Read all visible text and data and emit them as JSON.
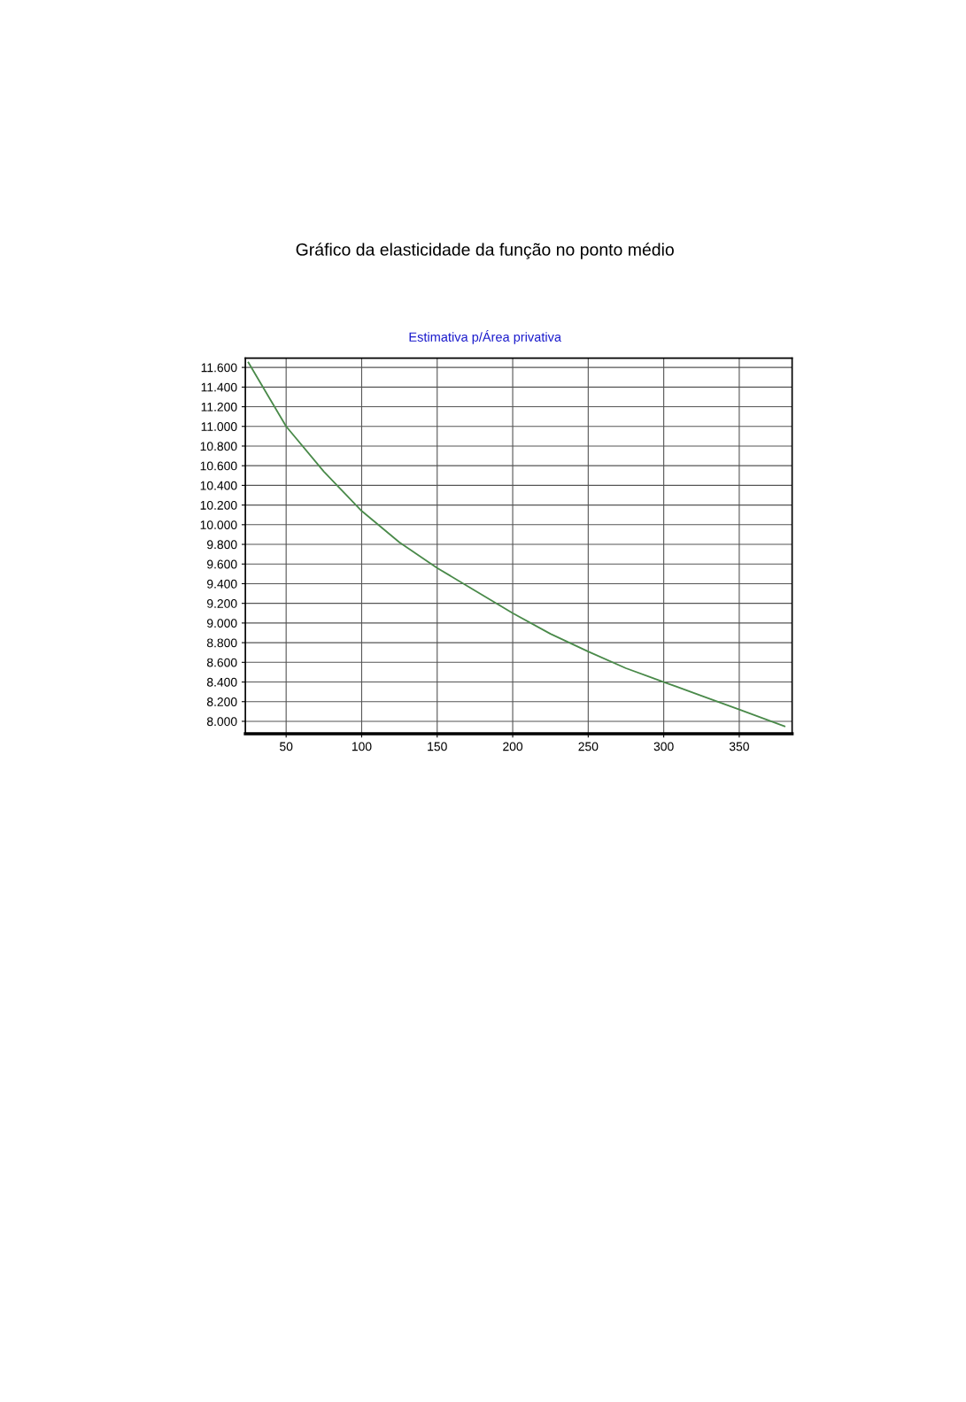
{
  "chart_data": {
    "type": "line",
    "title": "Gráfico da elasticidade da função no ponto médio",
    "subtitle": "Estimativa p/Área privativa",
    "x": [
      25,
      50,
      75,
      100,
      125,
      150,
      175,
      200,
      225,
      250,
      275,
      300,
      325,
      350,
      380
    ],
    "series": [
      {
        "color": "#4a8a4a",
        "values": [
          11650,
          11000,
          10540,
          10140,
          9820,
          9560,
          9330,
          9100,
          8890,
          8710,
          8540,
          8400,
          8260,
          8120,
          7950
        ]
      }
    ],
    "xlim": [
      23,
      385
    ],
    "xticks": [
      50,
      100,
      150,
      200,
      250,
      300,
      350
    ],
    "ylim": [
      7873,
      11695
    ],
    "yticks": [
      {
        "value": 8000,
        "label": "8.000"
      },
      {
        "value": 8200,
        "label": "8.200"
      },
      {
        "value": 8400,
        "label": "8.400"
      },
      {
        "value": 8600,
        "label": "8.600"
      },
      {
        "value": 8800,
        "label": "8.800"
      },
      {
        "value": 9000,
        "label": "9.000"
      },
      {
        "value": 9200,
        "label": "9.200"
      },
      {
        "value": 9400,
        "label": "9.400"
      },
      {
        "value": 9600,
        "label": "9.600"
      },
      {
        "value": 9800,
        "label": "9.800"
      },
      {
        "value": 10000,
        "label": "10.000"
      },
      {
        "value": 10200,
        "label": "10.200"
      },
      {
        "value": 10400,
        "label": "10.400"
      },
      {
        "value": 10600,
        "label": "10.600"
      },
      {
        "value": 10800,
        "label": "10.800"
      },
      {
        "value": 11000,
        "label": "11.000"
      },
      {
        "value": 11200,
        "label": "11.200"
      },
      {
        "value": 11400,
        "label": "11.400"
      },
      {
        "value": 11600,
        "label": "11.600"
      }
    ],
    "grid": true,
    "marker": "none",
    "line_style": "solid"
  }
}
